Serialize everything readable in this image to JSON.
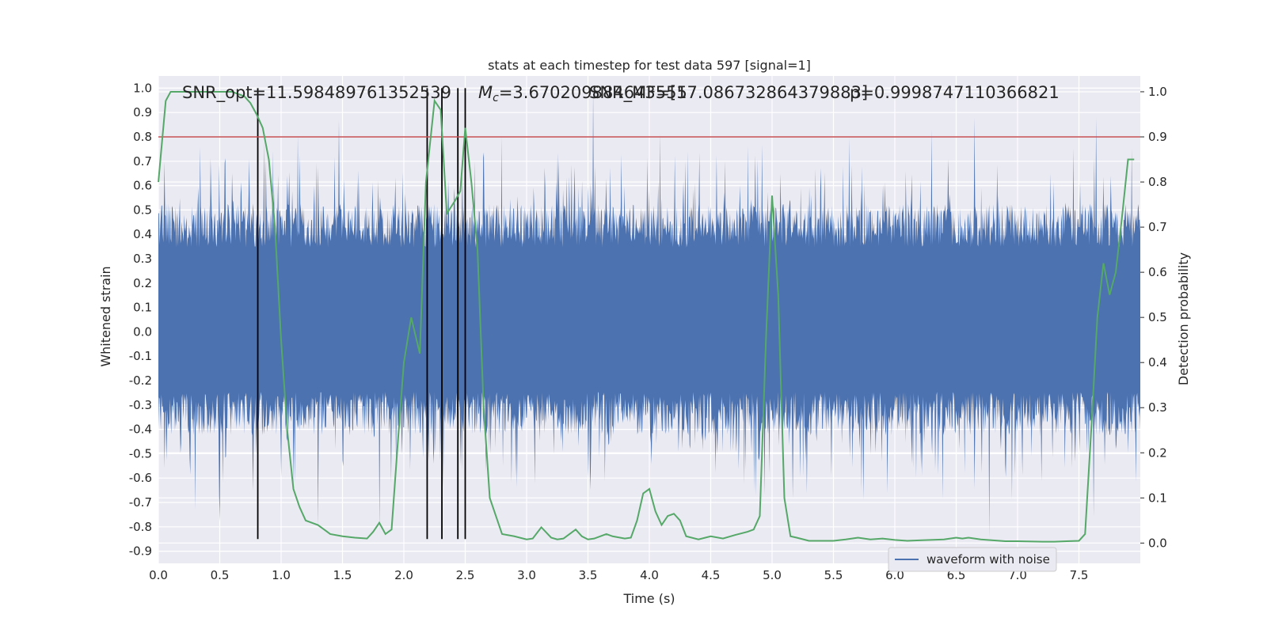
{
  "chart_data": {
    "type": "line",
    "title": "stats at each timestep for test data 597 [signal=1]",
    "xlabel": "Time (s)",
    "ylabel": "Whitened strain",
    "y2label": "Detection probability",
    "xlim": [
      0.0,
      8.0
    ],
    "ylim": [
      -0.95,
      1.05
    ],
    "y2lim": [
      -0.045,
      1.035
    ],
    "x_ticks": [
      "0.0",
      "0.5",
      "1.0",
      "1.5",
      "2.0",
      "2.5",
      "3.0",
      "3.5",
      "4.0",
      "4.5",
      "5.0",
      "5.5",
      "6.0",
      "6.5",
      "7.0",
      "7.5"
    ],
    "y_ticks": [
      "1.0",
      "0.9",
      "0.8",
      "0.7",
      "0.6",
      "0.5",
      "0.4",
      "0.3",
      "0.2",
      "0.1",
      "0.0",
      "-0.1",
      "-0.2",
      "-0.3",
      "-0.4",
      "-0.5",
      "-0.6",
      "-0.7",
      "-0.8",
      "-0.9"
    ],
    "y2_ticks": [
      "1.0",
      "0.9",
      "0.8",
      "0.7",
      "0.6",
      "0.5",
      "0.4",
      "0.3",
      "0.2",
      "0.1",
      "0.0"
    ],
    "annotations": {
      "snr_opt": "SNR_opt=11.598489761352539",
      "chirp_mass": "=3.670209884643555",
      "chirp_mass_symbol": "M",
      "chirp_mass_sub": "c",
      "snr_mf": "SNR_MF=[17.086732864379883]",
      "p_value": "p=0.9998747110366821"
    },
    "legend": {
      "entries": [
        "waveform with noise"
      ],
      "placement": "lower-center-right"
    },
    "grid": true,
    "threshold_line": {
      "y2": 0.9,
      "color": "#c44e52"
    },
    "vertical_markers": [
      0.81,
      2.19,
      2.31,
      2.44,
      2.5
    ],
    "marker_range_y": [
      -0.85,
      1.0
    ],
    "series": [
      {
        "name": "waveform with noise",
        "color": "#4c72b0",
        "envelope": {
          "n": 1600,
          "seed": 597,
          "base_lower": -0.3,
          "base_upper": 0.4,
          "scale": 0.09
        },
        "spikes": [
          {
            "x": 1.47,
            "y": 0.87
          },
          {
            "x": 3.54,
            "y": 1.0
          },
          {
            "x": 6.65,
            "y": 0.88
          },
          {
            "x": 7.64,
            "y": 0.88
          },
          {
            "x": 6.77,
            "y": -0.85
          },
          {
            "x": 1.8,
            "y": -0.82
          },
          {
            "x": 4.92,
            "y": 0.77
          },
          {
            "x": 5.07,
            "y": 0.65
          },
          {
            "x": 0.3,
            "y": -0.73
          },
          {
            "x": 0.5,
            "y": -0.78
          },
          {
            "x": 7.62,
            "y": -0.76
          },
          {
            "x": 2.2,
            "y": -0.53
          },
          {
            "x": 2.47,
            "y": -0.57
          },
          {
            "x": 1.3,
            "y": -0.8
          },
          {
            "x": 6.3,
            "y": 0.83
          }
        ]
      },
      {
        "name": "detection probability",
        "axis": "right",
        "color": "#55a868",
        "x": [
          0.0,
          0.06,
          0.1,
          0.15,
          0.2,
          0.3,
          0.4,
          0.5,
          0.6,
          0.65,
          0.7,
          0.75,
          0.8,
          0.85,
          0.9,
          0.95,
          1.0,
          1.05,
          1.1,
          1.15,
          1.2,
          1.25,
          1.3,
          1.35,
          1.4,
          1.5,
          1.6,
          1.7,
          1.75,
          1.8,
          1.85,
          1.9,
          1.95,
          2.0,
          2.06,
          2.13,
          2.18,
          2.25,
          2.3,
          2.35,
          2.42,
          2.46,
          2.5,
          2.55,
          2.6,
          2.65,
          2.7,
          2.8,
          2.9,
          3.0,
          3.05,
          3.12,
          3.2,
          3.25,
          3.3,
          3.35,
          3.4,
          3.45,
          3.5,
          3.55,
          3.6,
          3.65,
          3.7,
          3.8,
          3.85,
          3.9,
          3.95,
          4.0,
          4.05,
          4.1,
          4.15,
          4.2,
          4.25,
          4.3,
          4.4,
          4.5,
          4.6,
          4.7,
          4.8,
          4.85,
          4.9,
          4.95,
          5.0,
          5.05,
          5.1,
          5.15,
          5.2,
          5.3,
          5.5,
          5.6,
          5.7,
          5.75,
          5.8,
          5.9,
          6.0,
          6.1,
          6.2,
          6.4,
          6.5,
          6.55,
          6.6,
          6.7,
          6.8,
          6.9,
          7.0,
          7.2,
          7.3,
          7.4,
          7.5,
          7.55,
          7.6,
          7.65,
          7.7,
          7.75,
          7.8,
          7.85,
          7.9,
          7.95
        ],
        "y": [
          0.8,
          0.98,
          1.0,
          1.0,
          1.0,
          1.0,
          1.0,
          1.0,
          1.0,
          0.995,
          0.99,
          0.975,
          0.95,
          0.92,
          0.85,
          0.7,
          0.45,
          0.25,
          0.12,
          0.08,
          0.05,
          0.045,
          0.04,
          0.03,
          0.02,
          0.015,
          0.012,
          0.01,
          0.025,
          0.045,
          0.02,
          0.03,
          0.22,
          0.4,
          0.5,
          0.42,
          0.8,
          0.98,
          0.96,
          0.73,
          0.76,
          0.78,
          0.92,
          0.8,
          0.65,
          0.3,
          0.1,
          0.02,
          0.015,
          0.008,
          0.01,
          0.035,
          0.012,
          0.008,
          0.01,
          0.02,
          0.03,
          0.015,
          0.008,
          0.01,
          0.015,
          0.02,
          0.015,
          0.01,
          0.012,
          0.05,
          0.11,
          0.12,
          0.07,
          0.04,
          0.06,
          0.065,
          0.05,
          0.015,
          0.008,
          0.015,
          0.01,
          0.018,
          0.025,
          0.03,
          0.06,
          0.45,
          0.77,
          0.55,
          0.1,
          0.015,
          0.012,
          0.005,
          0.005,
          0.008,
          0.012,
          0.01,
          0.008,
          0.01,
          0.007,
          0.005,
          0.006,
          0.008,
          0.012,
          0.01,
          0.012,
          0.008,
          0.006,
          0.004,
          0.004,
          0.003,
          0.003,
          0.004,
          0.005,
          0.02,
          0.25,
          0.5,
          0.62,
          0.55,
          0.6,
          0.72,
          0.85,
          0.85
        ]
      }
    ]
  }
}
